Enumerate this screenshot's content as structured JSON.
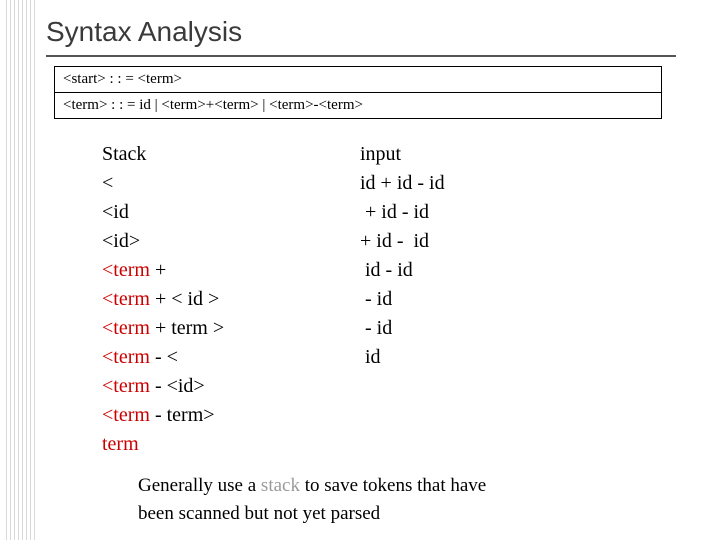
{
  "title": "Syntax Analysis",
  "grammar": {
    "row1": "<start>    : : =  <term>",
    "row2": "<term>    : : =  id    |     <term>+<term>      |       <term>-<term>"
  },
  "trace": {
    "header": {
      "stack": "Stack",
      "input": "input"
    },
    "rows": [
      {
        "stack_plain": "<",
        "input": "id + id - id"
      },
      {
        "stack_plain": "<id",
        "input": " + id - id"
      },
      {
        "stack_plain": "<id>",
        "input": "+ id -  id"
      },
      {
        "stack_red": "<term",
        "stack_tail": " +",
        "input": " id - id"
      },
      {
        "stack_red": "<term",
        "stack_tail": " + < id >",
        "input": " - id"
      },
      {
        "stack_red": "<term",
        "stack_tail": " + term >",
        "input": " - id"
      },
      {
        "stack_red": "<term",
        "stack_tail": " - <",
        "input": " id"
      },
      {
        "stack_red": "<term",
        "stack_tail": " - <id>",
        "input": ""
      },
      {
        "stack_red": "<term",
        "stack_tail": " - term>",
        "input": ""
      },
      {
        "stack_red": "term",
        "stack_tail": "",
        "input": ""
      }
    ]
  },
  "footer": {
    "pre": "Generally use a ",
    "greyword": "stack",
    "post1": " to save tokens that have",
    "line2": " been scanned but not yet parsed"
  },
  "colors": {
    "title": "#3a3a3a",
    "text": "#000000",
    "red": "#cc0000",
    "grey": "#9a9a9a",
    "ruled_line": "#d9d9d9",
    "background": "#ffffff"
  },
  "font_sizes": {
    "title": 28,
    "grammar": 15,
    "trace": 20,
    "footer": 19
  }
}
